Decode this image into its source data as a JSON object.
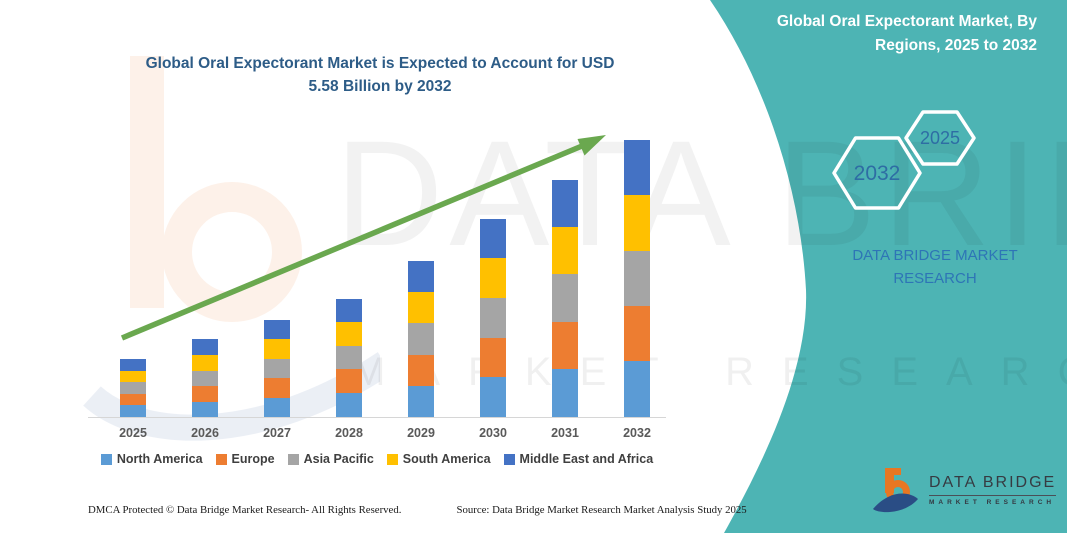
{
  "page": {
    "title_lines": [
      "Global Oral Expectorant Market is Expected to Account for USD",
      "5.58 Billion by 2032"
    ],
    "watermark_line1": "DATA BRIDGE",
    "watermark_line2": "MARKET RESEARCH"
  },
  "side_panel": {
    "heading_lines": [
      "Global Oral Expectorant Market, By",
      "Regions, 2025 to 2032"
    ],
    "hexagons": [
      {
        "label": "2032"
      },
      {
        "label": "2025"
      }
    ],
    "brand_text": "DATA BRIDGE MARKET RESEARCH",
    "accent_color": "#4db4b4",
    "text_color": "#2E75B6"
  },
  "logo": {
    "name": "DATA BRIDGE",
    "tagline": "MARKET RESEARCH"
  },
  "footer": {
    "left": "DMCA Protected © Data Bridge Market Research-  All Rights Reserved.",
    "source": "Source: Data Bridge Market Research  Market Analysis Study 2025"
  },
  "chart_data": {
    "type": "bar",
    "stacked": true,
    "unit": "USD Billion",
    "categories": [
      "2025",
      "2026",
      "2027",
      "2028",
      "2029",
      "2030",
      "2031",
      "2032"
    ],
    "series": [
      {
        "name": "North America",
        "color": "#5B9BD5",
        "values": [
          0.24,
          0.31,
          0.39,
          0.48,
          0.63,
          0.8,
          0.96,
          1.12
        ]
      },
      {
        "name": "Europe",
        "color": "#ED7D31",
        "values": [
          0.23,
          0.31,
          0.4,
          0.48,
          0.63,
          0.8,
          0.96,
          1.12
        ]
      },
      {
        "name": "Asia Pacific",
        "color": "#A5A5A5",
        "values": [
          0.23,
          0.31,
          0.39,
          0.47,
          0.63,
          0.8,
          0.96,
          1.11
        ]
      },
      {
        "name": "South America",
        "color": "#FFC000",
        "values": [
          0.23,
          0.32,
          0.4,
          0.48,
          0.63,
          0.8,
          0.96,
          1.12
        ]
      },
      {
        "name": "Middle East and Africa",
        "color": "#4472C4",
        "values": [
          0.24,
          0.32,
          0.39,
          0.47,
          0.64,
          0.79,
          0.95,
          1.11
        ]
      }
    ],
    "totals": [
      1.17,
      1.57,
      1.97,
      2.38,
      3.16,
      3.99,
      4.79,
      5.58
    ],
    "title": "Global Oral Expectorant Market is Expected to Account for USD 5.58 Billion by 2032",
    "xlabel": "",
    "ylabel": "",
    "y_axis_shown": false,
    "grid": false,
    "legend_position": "bottom",
    "annotation": "green growth trend arrow from 2025 to 2032",
    "arrow_color": "#6aa84f"
  }
}
